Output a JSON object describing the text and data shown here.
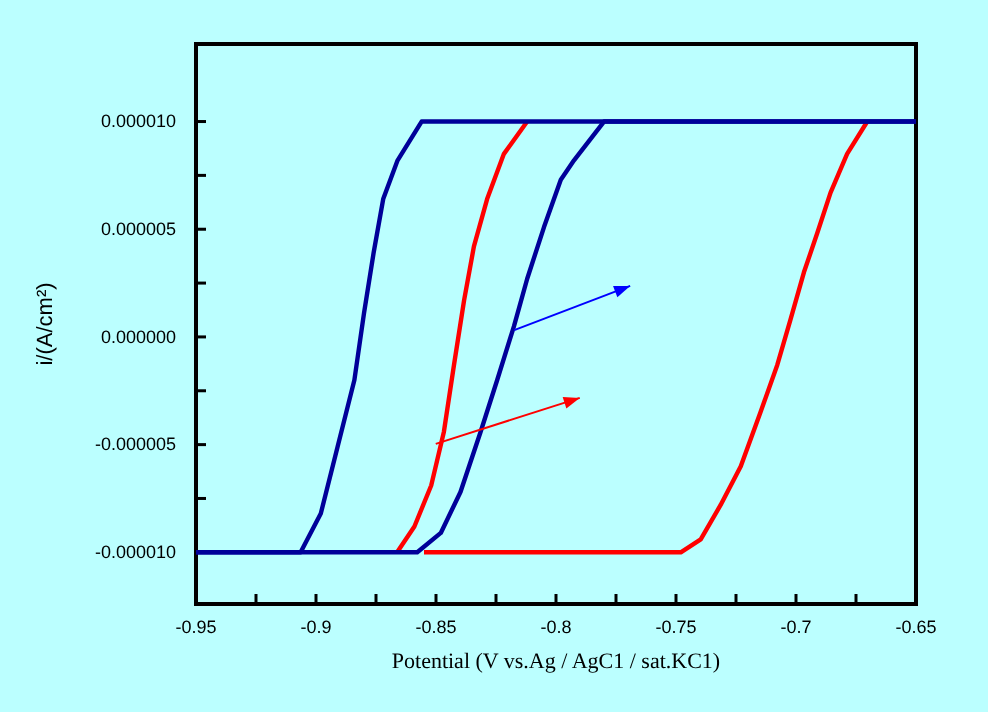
{
  "chart_data": {
    "type": "line",
    "xlabel": "Potential (V vs.Ag / AgC1 / sat.KC1)",
    "ylabel": "i/(A/cm²)",
    "xlim": [
      -0.95,
      -0.65
    ],
    "xticks": [
      -0.95,
      {
        "value": -0.925,
        "label": null
      },
      -0.9,
      {
        "value": -0.875,
        "label": null
      },
      -0.85,
      {
        "value": -0.825,
        "label": null
      },
      -0.8,
      {
        "value": -0.775,
        "label": null
      },
      -0.75,
      {
        "value": -0.725,
        "label": null
      },
      -0.7,
      {
        "value": -0.675,
        "label": null
      },
      -0.65
    ],
    "ylim": [
      -1.24e-05,
      1.36e-05
    ],
    "yticks": [
      {
        "value": -1e-05,
        "label": "-0.000010"
      },
      {
        "value": -7.5e-06,
        "label": null
      },
      {
        "value": -5e-06,
        "label": "-0.000005"
      },
      {
        "value": -2.5e-06,
        "label": null
      },
      {
        "value": 0,
        "label": "0.000000"
      },
      {
        "value": 2.5e-06,
        "label": null
      },
      {
        "value": 5e-06,
        "label": "0.000005"
      },
      {
        "value": 7.5e-06,
        "label": null
      },
      {
        "value": 1e-05,
        "label": "0.000010"
      }
    ],
    "grid": false,
    "marker": "none",
    "line_style": "solid",
    "series": [
      {
        "color": "#ff0000",
        "x": [
          -0.8662,
          -0.859,
          -0.852,
          -0.8467,
          -0.8425,
          -0.8383,
          -0.8342,
          -0.8287,
          -0.8217,
          -0.812
        ],
        "values": [
          -1e-05,
          -8.8e-06,
          -6.9e-06,
          -4.4e-06,
          -1.3e-06,
          1.7e-06,
          4.2e-06,
          6.4e-06,
          8.5e-06,
          1e-05
        ]
      },
      {
        "color": "#ff0000",
        "x": [
          -0.855,
          -0.748,
          -0.7397,
          -0.7314,
          -0.723,
          -0.7148,
          -0.7078,
          -0.7023,
          -0.6967,
          -0.6912,
          -0.6856,
          -0.6787,
          -0.6703
        ],
        "values": [
          -1e-05,
          -1e-05,
          -9.4e-06,
          -7.8e-06,
          -6e-06,
          -3.5e-06,
          -1.3e-06,
          8e-07,
          3e-06,
          4.8e-06,
          6.7e-06,
          8.5e-06,
          1e-05
        ]
      },
      {
        "color": "#000099",
        "x": [
          -0.95,
          -0.9064,
          -0.898,
          -0.891,
          -0.884,
          -0.88,
          -0.876,
          -0.872,
          -0.866,
          -0.856,
          -0.65
        ],
        "values": [
          -1e-05,
          -1e-05,
          -8.2e-06,
          -5.1e-06,
          -2e-06,
          1.1e-06,
          3.9e-06,
          6.4e-06,
          8.2e-06,
          1e-05,
          1e-05
        ]
      },
      {
        "color": "#000099",
        "x": [
          -0.95,
          -0.8578,
          -0.848,
          -0.8398,
          -0.8314,
          -0.8245,
          -0.8175,
          -0.812,
          -0.805,
          -0.798,
          -0.7925,
          -0.78,
          -0.65
        ],
        "values": [
          -1e-05,
          -1e-05,
          -9.1e-06,
          -7.2e-06,
          -4.4e-06,
          -2e-06,
          5e-07,
          2.7e-06,
          5.1e-06,
          7.3e-06,
          8.2e-06,
          1e-05,
          1e-05
        ]
      }
    ]
  }
}
